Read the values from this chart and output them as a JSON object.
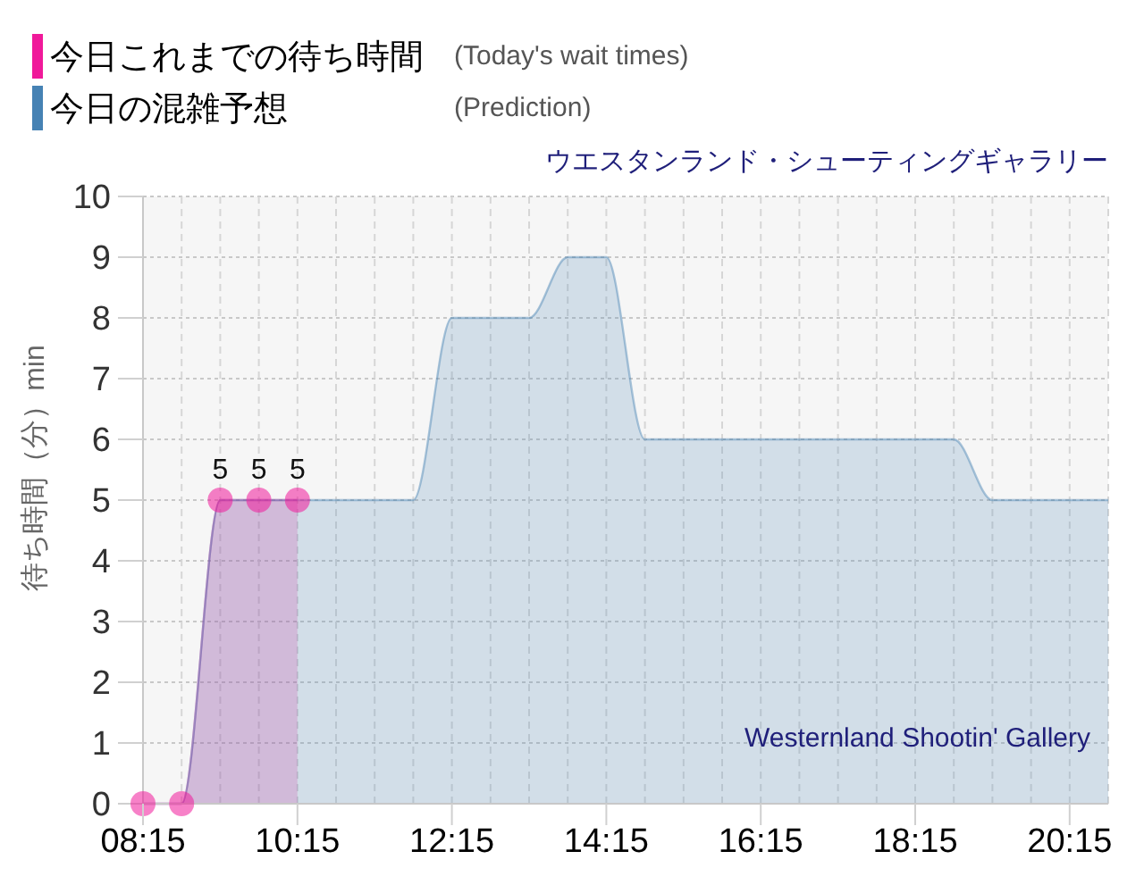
{
  "chart_data": {
    "type": "area",
    "title": "ウエスタンランド・シューティングギャラリー",
    "ylabel": "待ち時間（分）min",
    "annotations": [
      "Westernland Shootin' Gallery"
    ],
    "x": [
      8.25,
      8.75,
      9.25,
      9.75,
      10.25,
      10.75,
      11.25,
      11.75,
      12.25,
      12.75,
      13.25,
      13.75,
      14.25,
      14.75,
      15.25,
      15.75,
      16.25,
      16.75,
      17.25,
      17.75,
      18.25,
      18.75,
      19.25,
      19.75,
      20.25,
      20.75
    ],
    "series": [
      {
        "name": "今日これまでの待ち時間 (Today's wait times)",
        "color": "#f0199a",
        "x": [
          8.25,
          8.75,
          9.25,
          9.75,
          10.25
        ],
        "values": [
          0,
          0,
          5,
          5,
          5
        ],
        "value_labels": [
          null,
          null,
          "5",
          "5",
          "5"
        ],
        "marker": "circle"
      },
      {
        "name": "今日の混雑予想 (Prediction)",
        "color": "#4682b4",
        "values": [
          0,
          0,
          5,
          5,
          5,
          5,
          5,
          5,
          8,
          8,
          8,
          9,
          9,
          6,
          6,
          6,
          6,
          6,
          6,
          6,
          6,
          6,
          5,
          5,
          5,
          5
        ],
        "marker": "none"
      }
    ],
    "xlim": [
      8.25,
      20.75
    ],
    "xticks": [
      {
        "value": 8.25,
        "label": "08:15"
      },
      {
        "value": 8.75,
        "label": null
      },
      {
        "value": 9.25,
        "label": null
      },
      {
        "value": 9.75,
        "label": null
      },
      {
        "value": 10.25,
        "label": "10:15"
      },
      {
        "value": 10.75,
        "label": null
      },
      {
        "value": 11.25,
        "label": null
      },
      {
        "value": 11.75,
        "label": null
      },
      {
        "value": 12.25,
        "label": "12:15"
      },
      {
        "value": 12.75,
        "label": null
      },
      {
        "value": 13.25,
        "label": null
      },
      {
        "value": 13.75,
        "label": null
      },
      {
        "value": 14.25,
        "label": "14:15"
      },
      {
        "value": 14.75,
        "label": null
      },
      {
        "value": 15.25,
        "label": null
      },
      {
        "value": 15.75,
        "label": null
      },
      {
        "value": 16.25,
        "label": "16:15"
      },
      {
        "value": 16.75,
        "label": null
      },
      {
        "value": 17.25,
        "label": null
      },
      {
        "value": 17.75,
        "label": null
      },
      {
        "value": 18.25,
        "label": "18:15"
      },
      {
        "value": 18.75,
        "label": null
      },
      {
        "value": 19.25,
        "label": null
      },
      {
        "value": 19.75,
        "label": null
      },
      {
        "value": 20.25,
        "label": "20:15"
      },
      {
        "value": 20.75,
        "label": null
      }
    ],
    "ylim": [
      0,
      10
    ],
    "yticks": [
      0,
      1,
      2,
      3,
      4,
      5,
      6,
      7,
      8,
      9,
      10
    ],
    "grid": true,
    "legend": "top left"
  }
}
